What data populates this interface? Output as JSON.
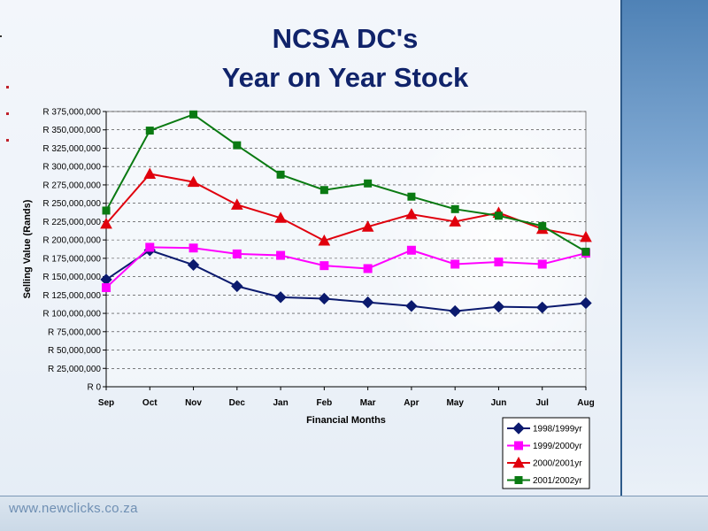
{
  "slide": {
    "title_line1": "NCSA  DC's",
    "title_line2": "Year on Year Stock",
    "footer_url": "www.newclicks.co.za"
  },
  "colors": {
    "title": "#10236a",
    "bullet": "#c0202a"
  },
  "chart_data": {
    "type": "line",
    "title": "",
    "xlabel": "Financial Months",
    "ylabel": "Selling Value (Rands)",
    "categories": [
      "Sep",
      "Oct",
      "Nov",
      "Dec",
      "Jan",
      "Feb",
      "Mar",
      "Apr",
      "May",
      "Jun",
      "Jul",
      "Aug"
    ],
    "ylim": [
      0,
      375000000
    ],
    "yticks": [
      0,
      25000000,
      50000000,
      75000000,
      100000000,
      125000000,
      150000000,
      175000000,
      200000000,
      225000000,
      250000000,
      275000000,
      300000000,
      325000000,
      350000000,
      375000000
    ],
    "ytick_labels": [
      "R 0",
      "R 25,000,000",
      "R 50,000,000",
      "R 75,000,000",
      "R 100,000,000",
      "R 125,000,000",
      "R 150,000,000",
      "R 175,000,000",
      "R 200,000,000",
      "R 225,000,000",
      "R 250,000,000",
      "R 275,000,000",
      "R 300,000,000",
      "R 325,000,000",
      "R 350,000,000",
      "R 375,000,000"
    ],
    "grid": true,
    "legend_position": "bottom-right",
    "series": [
      {
        "name": "1998/1999yr",
        "color": "#0b1a6e",
        "marker": "diamond",
        "values": [
          146000000,
          186000000,
          166000000,
          137000000,
          122000000,
          120000000,
          115000000,
          110000000,
          103000000,
          109000000,
          108000000,
          114000000
        ]
      },
      {
        "name": "1999/2000yr",
        "color": "#ff00ff",
        "marker": "square",
        "values": [
          135000000,
          190000000,
          189000000,
          181000000,
          179000000,
          165000000,
          161000000,
          186000000,
          167000000,
          170000000,
          167000000,
          182000000
        ]
      },
      {
        "name": "2000/2001yr",
        "color": "#e0000d",
        "marker": "triangle",
        "values": [
          222000000,
          290000000,
          279000000,
          248000000,
          230000000,
          199000000,
          218000000,
          235000000,
          225000000,
          237000000,
          215000000,
          204000000
        ]
      },
      {
        "name": "2001/2002yr",
        "color": "#0a7a12",
        "marker": "square",
        "values": [
          240000000,
          349000000,
          371000000,
          329000000,
          289000000,
          268000000,
          277000000,
          259000000,
          242000000,
          233000000,
          219000000,
          184000000
        ]
      }
    ]
  }
}
